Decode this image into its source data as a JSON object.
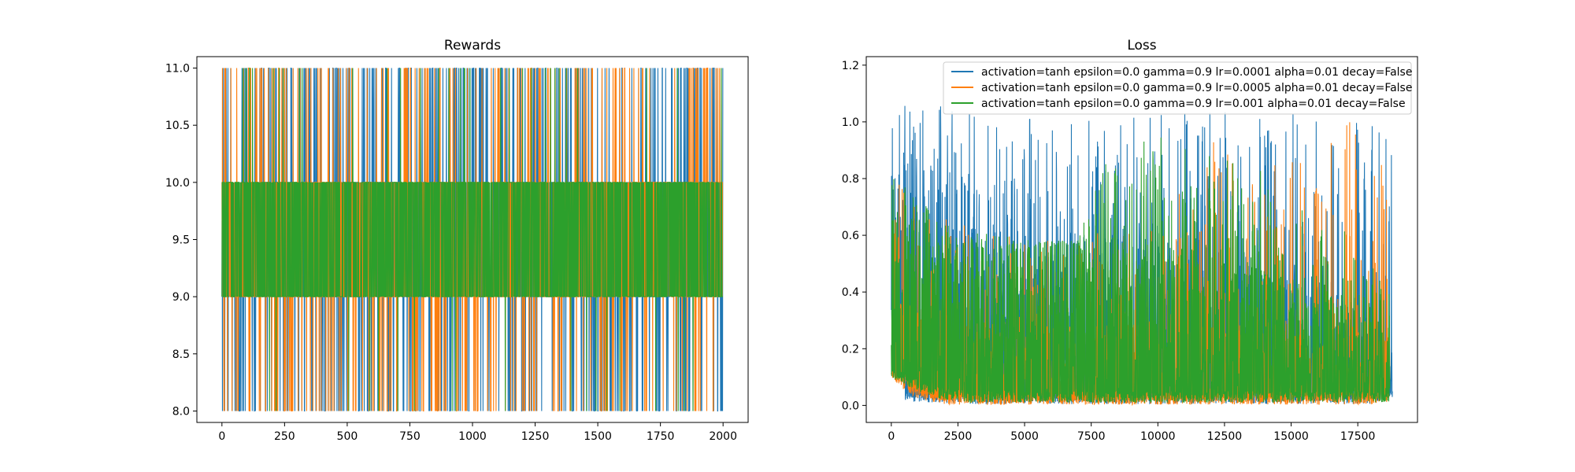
{
  "chart_data": [
    {
      "type": "line",
      "title": "Rewards",
      "xlabel": "",
      "ylabel": "",
      "xlim": [
        -100,
        2100
      ],
      "ylim": [
        7.9,
        11.1
      ],
      "x_ticks": [
        0,
        250,
        500,
        750,
        1000,
        1250,
        1500,
        1750,
        2000
      ],
      "y_ticks": [
        8.0,
        8.5,
        9.0,
        9.5,
        10.0,
        10.5,
        11.0
      ],
      "x_tick_labels": [
        "0",
        "250",
        "500",
        "750",
        "1000",
        "1250",
        "1500",
        "1750",
        "2000"
      ],
      "y_tick_labels": [
        "8.0",
        "8.5",
        "9.0",
        "9.5",
        "10.0",
        "10.5",
        "11.0"
      ],
      "x_range": [
        0,
        1999
      ],
      "legend": "none",
      "grid": false,
      "series": [
        {
          "color": "#1f77b4",
          "values": [
            11,
            8,
            9,
            10,
            11,
            8,
            9,
            10,
            9,
            10,
            11,
            9,
            8,
            10,
            11,
            10,
            9,
            8,
            11,
            10,
            9,
            10,
            8,
            11,
            9,
            10,
            11,
            8,
            10,
            9
          ]
        },
        {
          "color": "#ff7f0e",
          "values": [
            9,
            10,
            8,
            11,
            10,
            9,
            8,
            10,
            11,
            9,
            10,
            8,
            9,
            11,
            10,
            8,
            10,
            9,
            11,
            8,
            10,
            9,
            8,
            11,
            10,
            9,
            8,
            10,
            11,
            9
          ]
        },
        {
          "color": "#2ca02c",
          "values": [
            10,
            9,
            10,
            9,
            10,
            9,
            11,
            9,
            10,
            9,
            10,
            8,
            9,
            10,
            9,
            10,
            11,
            9,
            10,
            9,
            10,
            9,
            10,
            8,
            9,
            10,
            9,
            10,
            9,
            10
          ]
        }
      ]
    },
    {
      "type": "line",
      "title": "Loss",
      "xlabel": "",
      "ylabel": "",
      "xlim": [
        -940,
        19740
      ],
      "ylim": [
        -0.06,
        1.23
      ],
      "x_ticks": [
        0,
        2500,
        5000,
        7500,
        10000,
        12500,
        15000,
        17500
      ],
      "y_ticks": [
        0.0,
        0.2,
        0.4,
        0.6,
        0.8,
        1.0,
        1.2
      ],
      "x_tick_labels": [
        "0",
        "2500",
        "5000",
        "7500",
        "10000",
        "12500",
        "15000",
        "17500"
      ],
      "y_tick_labels": [
        "0.0",
        "0.2",
        "0.4",
        "0.6",
        "0.8",
        "1.0",
        "1.2"
      ],
      "x_range": [
        0,
        18800
      ],
      "legend": "upper right",
      "grid": false,
      "series": [
        {
          "name": "activation=tanh epsilon=0.0 gamma=0.9 lr=0.0001 alpha=0.01 decay=False",
          "color": "#1f77b4",
          "x": [
            0,
            500,
            1000,
            2000,
            3000,
            4000,
            5000,
            6000,
            7000,
            8000,
            9000,
            10000,
            11000,
            12000,
            13000,
            14000,
            15000,
            16000,
            17000,
            18000,
            18800
          ],
          "upper": [
            1.09,
            1.1,
            1.08,
            1.07,
            1.06,
            1.05,
            1.05,
            1.04,
            1.04,
            1.05,
            1.03,
            1.04,
            1.05,
            1.04,
            1.03,
            1.02,
            1.03,
            1.01,
            1.02,
            1.0,
            0.97
          ],
          "lower": [
            0.3,
            0.02,
            0.01,
            0.01,
            0.005,
            0.005,
            0.005,
            0.005,
            0.005,
            0.005,
            0.005,
            0.005,
            0.005,
            0.005,
            0.005,
            0.005,
            0.005,
            0.005,
            0.005,
            0.005,
            0.03
          ],
          "floor": [
            0.85,
            0.84,
            0.8,
            0.75,
            0.7,
            0.66,
            0.62,
            0.59,
            0.6,
            0.62,
            0.62,
            0.62,
            0.6,
            0.58,
            0.56,
            0.52,
            0.48,
            0.44,
            0.38,
            0.32,
            0.2
          ]
        },
        {
          "name": "activation=tanh epsilon=0.0 gamma=0.9 lr=0.0005 alpha=0.01 decay=False",
          "color": "#ff7f0e",
          "x": [
            0,
            500,
            1000,
            1500,
            2000,
            2500,
            3000,
            3500,
            4000,
            5000,
            6000,
            7000,
            8000,
            9000,
            10000,
            11000,
            12000,
            13000,
            14000,
            15000,
            16000,
            17000,
            18000,
            18700
          ],
          "upper": [
            0.82,
            0.76,
            0.74,
            0.71,
            0.69,
            0.67,
            0.65,
            0.63,
            0.61,
            0.59,
            0.58,
            0.6,
            0.62,
            0.66,
            0.7,
            0.76,
            0.95,
            0.85,
            0.88,
            0.9,
            0.95,
            1.0,
            1.05,
            0.85
          ],
          "lower": [
            0.1,
            0.05,
            0.02,
            0.01,
            0.005,
            0.003,
            0.002,
            0.002,
            0.002,
            0.002,
            0.002,
            0.002,
            0.003,
            0.003,
            0.003,
            0.003,
            0.003,
            0.003,
            0.003,
            0.003,
            0.003,
            0.003,
            0.003,
            0.01
          ],
          "floor": [
            0.4,
            0.38,
            0.36,
            0.34,
            0.32,
            0.3,
            0.28,
            0.28,
            0.28,
            0.28,
            0.28,
            0.28,
            0.3,
            0.3,
            0.3,
            0.3,
            0.3,
            0.3,
            0.3,
            0.3,
            0.3,
            0.3,
            0.3,
            0.25
          ]
        },
        {
          "name": "activation=tanh epsilon=0.0 gamma=0.9 lr=0.001 alpha=0.01 decay=False",
          "color": "#2ca02c",
          "x": [
            0,
            500,
            1000,
            1500,
            2000,
            3000,
            4000,
            5000,
            6000,
            7000,
            8000,
            9000,
            10000,
            11000,
            12000,
            13000,
            14000,
            15000,
            16000,
            17000,
            18000,
            18700
          ],
          "upper": [
            0.85,
            0.78,
            0.74,
            0.68,
            0.64,
            0.62,
            0.6,
            0.6,
            0.58,
            0.59,
            0.85,
            0.92,
            0.95,
            0.96,
            0.93,
            0.9,
            0.85,
            0.72,
            0.68,
            0.62,
            0.5,
            0.4
          ],
          "lower": [
            0.1,
            0.07,
            0.05,
            0.03,
            0.02,
            0.01,
            0.01,
            0.01,
            0.01,
            0.01,
            0.01,
            0.01,
            0.01,
            0.01,
            0.01,
            0.01,
            0.01,
            0.01,
            0.01,
            0.01,
            0.01,
            0.01
          ],
          "floor": [
            0.72,
            0.64,
            0.6,
            0.58,
            0.56,
            0.55,
            0.55,
            0.55,
            0.56,
            0.57,
            0.58,
            0.58,
            0.57,
            0.56,
            0.54,
            0.52,
            0.48,
            0.44,
            0.4,
            0.36,
            0.32,
            0.28
          ]
        }
      ]
    }
  ]
}
